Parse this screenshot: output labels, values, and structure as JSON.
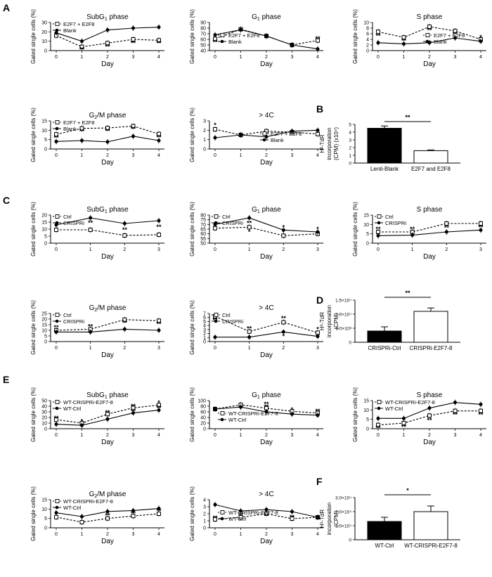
{
  "panel_letters": [
    "A",
    "B",
    "C",
    "D",
    "E",
    "F"
  ],
  "day_label": "Day",
  "ylabel_cells": "Gated single cells (%)",
  "chart_data": [
    {
      "panel": "A",
      "type": "line",
      "title": "SubG1 phase",
      "title_sub": "1",
      "xticks": [
        "0",
        "1",
        "2",
        "3",
        "4"
      ],
      "x": [
        0,
        1,
        2,
        3,
        4
      ],
      "ylim": [
        0,
        30
      ],
      "yticks": [
        "0",
        "10",
        "20",
        "30"
      ],
      "series": [
        {
          "name": "E2F7 + E2F8",
          "style": "open",
          "values": [
            16,
            4,
            8,
            12,
            11
          ]
        },
        {
          "name": "Blank",
          "style": "filled",
          "values": [
            19,
            10,
            22,
            24,
            25
          ]
        }
      ],
      "legend_loc": "top-left",
      "stars": [
        {
          "x": 1,
          "y": 1,
          "t": "**"
        },
        {
          "x": 2,
          "y": 4,
          "t": "**"
        },
        {
          "x": 3,
          "y": 8,
          "t": "**"
        },
        {
          "x": 4,
          "y": 8,
          "t": "**"
        }
      ]
    },
    {
      "panel": "A",
      "type": "line",
      "title": "G1 phase",
      "title_sub": "1",
      "xticks": [
        "0",
        "1",
        "2",
        "3",
        "4"
      ],
      "x": [
        0,
        1,
        2,
        3,
        4
      ],
      "ylim": [
        40,
        90
      ],
      "yticks": [
        "40",
        "50",
        "60",
        "70",
        "80",
        "90"
      ],
      "series": [
        {
          "name": "E2F7 + E2F8",
          "style": "open",
          "values": [
            61,
            78,
            66,
            50,
            58
          ]
        },
        {
          "name": "Blank",
          "style": "filled",
          "values": [
            68,
            77,
            66,
            50,
            43
          ]
        }
      ],
      "legend_loc": "bottom-left",
      "stars": [
        {
          "x": 0,
          "y": 55,
          "t": "**"
        },
        {
          "x": 4,
          "y": 61,
          "t": "**"
        }
      ]
    },
    {
      "panel": "A",
      "type": "line",
      "title": "S phase",
      "xticks": [
        "0",
        "1",
        "2",
        "3",
        "4"
      ],
      "x": [
        0,
        1,
        2,
        3,
        4
      ],
      "ylim": [
        0,
        10
      ],
      "yticks": [
        "0",
        "2",
        "4",
        "6",
        "8",
        "10"
      ],
      "series": [
        {
          "name": "E2F7 + E2F8",
          "style": "open",
          "values": [
            6.7,
            4.7,
            8.5,
            7,
            4
          ]
        },
        {
          "name": "Blank",
          "style": "filled",
          "values": [
            2.8,
            2.4,
            2.8,
            4.5,
            3.3
          ]
        }
      ],
      "legend_loc": "bottom-right",
      "stars": [
        {
          "x": 0,
          "y": 5.3,
          "t": "**"
        },
        {
          "x": 1,
          "y": 3.5,
          "t": "**"
        },
        {
          "x": 2,
          "y": 7.3,
          "t": "**"
        },
        {
          "x": 3,
          "y": 5.9,
          "t": "**"
        },
        {
          "x": 4,
          "y": 4.8,
          "t": "*"
        }
      ]
    },
    {
      "panel": "A",
      "type": "line",
      "title": "G2/M phase",
      "title_sub": "2",
      "xticks": [
        "0",
        "1",
        "2",
        "3",
        "4"
      ],
      "x": [
        0,
        1,
        2,
        3,
        4
      ],
      "ylim": [
        0,
        15
      ],
      "yticks": [
        "0",
        "5",
        "10",
        "15"
      ],
      "series": [
        {
          "name": "E2F7 + E2F8",
          "style": "open",
          "values": [
            7.8,
            11,
            11.2,
            12.2,
            8
          ]
        },
        {
          "name": "Blank",
          "style": "filled",
          "values": [
            4,
            4.5,
            3.8,
            6.8,
            4.5
          ]
        }
      ],
      "legend_loc": "top-left",
      "stars": [
        {
          "x": 0,
          "y": 6,
          "t": "**"
        },
        {
          "x": 1,
          "y": 9.3,
          "t": "**"
        },
        {
          "x": 2,
          "y": 9.5,
          "t": "**"
        },
        {
          "x": 3,
          "y": 10.6,
          "t": "**"
        },
        {
          "x": 4,
          "y": 6.2,
          "t": "**"
        }
      ]
    },
    {
      "panel": "A",
      "type": "line",
      "title": "> 4C",
      "xticks": [
        "0",
        "1",
        "2",
        "3",
        "4"
      ],
      "x": [
        0,
        1,
        2,
        3,
        4
      ],
      "ylim": [
        0,
        3
      ],
      "yticks": [
        "0",
        "1",
        "2",
        "3"
      ],
      "series": [
        {
          "name": "E2F7 + E2F8",
          "style": "open",
          "values": [
            2.1,
            1.5,
            1.9,
            1.8,
            1.6
          ]
        },
        {
          "name": "Blank",
          "style": "filled",
          "values": [
            1.2,
            1.5,
            1.3,
            1.9,
            2
          ]
        }
      ],
      "legend_loc": "bottom-right",
      "stars": [
        {
          "x": 0,
          "y": 2.55,
          "t": "*"
        }
      ]
    },
    {
      "panel": "B",
      "type": "bar",
      "categories": [
        "Lenti-Blank",
        "E2F7 and E2F8"
      ],
      "values": [
        4.5,
        1.6
      ],
      "errors": [
        0.3,
        0.1
      ],
      "fills": [
        "#000000",
        "#ffffff"
      ],
      "ylim": [
        0,
        5
      ],
      "yticks": [
        "0",
        "1",
        "2",
        "3",
        "4",
        "5"
      ],
      "ylabel": [
        "H³-TdR",
        "incorporation",
        "(CPM) (x10⁴)"
      ],
      "sig": "**"
    },
    {
      "panel": "C",
      "type": "line",
      "title": "SubG1 phase",
      "title_sub": "1",
      "xticks": [
        "0",
        "1",
        "2",
        "3"
      ],
      "x": [
        0,
        1,
        2,
        3
      ],
      "ylim": [
        0,
        20
      ],
      "yticks": [
        "0",
        "5",
        "10",
        "15",
        "20"
      ],
      "series": [
        {
          "name": "Ctrl",
          "style": "open",
          "values": [
            9.5,
            9.5,
            5.5,
            6
          ]
        },
        {
          "name": "CRISPRi",
          "style": "filled",
          "values": [
            13,
            18,
            14,
            16
          ]
        }
      ],
      "legend_loc": "top-left",
      "stars": [
        {
          "x": 1,
          "y": 14.5,
          "t": "**"
        },
        {
          "x": 2,
          "y": 9.5,
          "t": "**"
        },
        {
          "x": 3,
          "y": 11.5,
          "t": "**"
        }
      ]
    },
    {
      "panel": "C",
      "type": "line",
      "title": "G1 phase",
      "title_sub": "1",
      "xticks": [
        "0",
        "1",
        "2",
        "3"
      ],
      "x": [
        0,
        1,
        2,
        3
      ],
      "ylim": [
        50,
        80
      ],
      "yticks": [
        "50",
        "55",
        "60",
        "65",
        "70",
        "75",
        "80"
      ],
      "series": [
        {
          "name": "Ctrl",
          "style": "open",
          "values": [
            66,
            67,
            58,
            60
          ]
        },
        {
          "name": "CRISPRi",
          "style": "filled",
          "values": [
            70,
            77,
            64,
            62
          ]
        }
      ],
      "legend_loc": "top-left",
      "stars": [
        {
          "x": 1,
          "y": 71.5,
          "t": "**"
        },
        {
          "x": 1,
          "y": 62,
          "t": "*"
        },
        {
          "x": 2,
          "y": 67,
          "t": "*"
        },
        {
          "x": 3,
          "y": 65,
          "t": "*"
        }
      ]
    },
    {
      "panel": "C",
      "type": "line",
      "title": "S phase",
      "xticks": [
        "0",
        "1",
        "2",
        "3"
      ],
      "x": [
        0,
        1,
        2,
        3
      ],
      "ylim": [
        0,
        15
      ],
      "yticks": [
        "0",
        "5",
        "10",
        "15"
      ],
      "series": [
        {
          "name": "Ctrl",
          "style": "open",
          "values": [
            6,
            6,
            10.5,
            10.5
          ]
        },
        {
          "name": "CRISPRi",
          "style": "filled",
          "values": [
            4,
            4.3,
            6,
            7
          ]
        }
      ],
      "legend_loc": "top-left",
      "stars": [
        {
          "x": 0,
          "y": 7.5,
          "t": "**"
        },
        {
          "x": 1,
          "y": 7.5,
          "t": "**"
        },
        {
          "x": 2,
          "y": 8.3,
          "t": "**"
        },
        {
          "x": 3,
          "y": 8.5,
          "t": "**"
        }
      ]
    },
    {
      "panel": "C",
      "type": "line",
      "title": "G2/M phase",
      "title_sub": "2",
      "xticks": [
        "0",
        "1",
        "2",
        "3"
      ],
      "x": [
        0,
        1,
        2,
        3
      ],
      "ylim": [
        0,
        25
      ],
      "yticks": [
        "0",
        "5",
        "10",
        "15",
        "20",
        "25"
      ],
      "series": [
        {
          "name": "Ctrl",
          "style": "open",
          "values": [
            10,
            11,
            19.5,
            18.5
          ]
        },
        {
          "name": "CRISPRi",
          "style": "filled",
          "values": [
            8.5,
            8.5,
            11,
            10
          ]
        }
      ],
      "legend_loc": "top-left",
      "stars": [
        {
          "x": 0,
          "y": 12.5,
          "t": "**"
        },
        {
          "x": 1,
          "y": 13.5,
          "t": "**"
        },
        {
          "x": 2,
          "y": 16.5,
          "t": "**"
        },
        {
          "x": 3,
          "y": 15.5,
          "t": "**"
        }
      ]
    },
    {
      "panel": "C",
      "type": "line",
      "title": "> 4C",
      "xticks": [
        "0",
        "1",
        "2",
        "3"
      ],
      "x": [
        0,
        1,
        2,
        3
      ],
      "ylim": [
        0,
        7
      ],
      "yticks": [
        "0",
        "1",
        "2",
        "3",
        "4",
        "5",
        "6",
        "7"
      ],
      "series": [
        {
          "name": "Ctrl",
          "style": "open",
          "values": [
            6.3,
            2.5,
            4.8,
            2.2
          ]
        },
        {
          "name": "CRISPRi",
          "style": "filled",
          "values": [
            1.1,
            1.1,
            2.4,
            1.3
          ]
        }
      ],
      "legend_loc": "top-left",
      "stars": [
        {
          "x": 0,
          "y": 5.3,
          "t": "**"
        },
        {
          "x": 1,
          "y": 3.2,
          "t": "**"
        },
        {
          "x": 2,
          "y": 5.8,
          "t": "**"
        },
        {
          "x": 2,
          "y": 1.3,
          "t": "*"
        },
        {
          "x": 3,
          "y": 3.1,
          "t": "*"
        }
      ]
    },
    {
      "panel": "D",
      "type": "bar",
      "categories": [
        "CRISPRi-Ctrl",
        "CRISPRi-E2F7-8"
      ],
      "values": [
        4,
        11
      ],
      "errors": [
        1.5,
        1.2
      ],
      "fills": [
        "#000000",
        "#ffffff"
      ],
      "ylim": [
        0,
        15
      ],
      "yticks": [
        "0",
        "5.0×10³",
        "1.0×10⁴",
        "1.5×10⁴"
      ],
      "ylabel": [
        "H³-TdR",
        "incorporation",
        "(CPM)"
      ],
      "sig": "**"
    },
    {
      "panel": "E",
      "type": "line",
      "title": "SubG1 phase",
      "title_sub": "1",
      "xticks": [
        "0",
        "1",
        "2",
        "3",
        "4"
      ],
      "x": [
        0,
        1,
        2,
        3,
        4
      ],
      "ylim": [
        0,
        50
      ],
      "yticks": [
        "0",
        "10",
        "20",
        "30",
        "40",
        "50"
      ],
      "series": [
        {
          "name": "WT-CRISPRi-E2F7-8",
          "style": "open",
          "values": [
            16,
            10,
            26,
            37,
            42
          ]
        },
        {
          "name": "WT-Ctrl",
          "style": "filled",
          "values": [
            8,
            6,
            17,
            28,
            33
          ]
        }
      ],
      "legend_loc": "top-left",
      "stars": [
        {
          "x": 0,
          "y": 19,
          "t": "**"
        },
        {
          "x": 1,
          "y": 13,
          "t": "*"
        },
        {
          "x": 2,
          "y": 29,
          "t": "**"
        },
        {
          "x": 3,
          "y": 40,
          "t": "**"
        },
        {
          "x": 3,
          "y": 31,
          "t": "**"
        },
        {
          "x": 4,
          "y": 46,
          "t": "*"
        },
        {
          "x": 4,
          "y": 37,
          "t": "**"
        }
      ]
    },
    {
      "panel": "E",
      "type": "line",
      "title": "G1 phase",
      "title_sub": "1",
      "xticks": [
        "0",
        "1",
        "2",
        "3",
        "4"
      ],
      "x": [
        0,
        1,
        2,
        3,
        4
      ],
      "ylim": [
        0,
        100
      ],
      "yticks": [
        "0",
        "20",
        "40",
        "60",
        "80",
        "100"
      ],
      "series": [
        {
          "name": "WT-CRISPRi-E2F7-8",
          "style": "open",
          "values": [
            70,
            85,
            73,
            62,
            56
          ]
        },
        {
          "name": "WT-Ctrl",
          "style": "filled",
          "values": [
            70,
            77,
            60,
            52,
            48
          ]
        }
      ],
      "legend_loc": "bottom-left",
      "stars": [
        {
          "x": 2,
          "y": 88,
          "t": "**"
        },
        {
          "x": 2,
          "y": 78,
          "t": "**"
        },
        {
          "x": 3,
          "y": 67,
          "t": "*"
        },
        {
          "x": 4,
          "y": 62,
          "t": "**"
        }
      ]
    },
    {
      "panel": "E",
      "type": "line",
      "title": "S phase",
      "xticks": [
        "0",
        "1",
        "2",
        "3",
        "4"
      ],
      "x": [
        0,
        1,
        2,
        3,
        4
      ],
      "ylim": [
        0,
        15
      ],
      "yticks": [
        "0",
        "5",
        "10",
        "15"
      ],
      "series": [
        {
          "name": "WT-CRISPRi-E2F7-8",
          "style": "open",
          "values": [
            2,
            3,
            7,
            9.5,
            9.5
          ]
        },
        {
          "name": "WT-Ctrl",
          "style": "filled",
          "values": [
            5.5,
            5.5,
            11,
            14,
            13
          ]
        }
      ],
      "legend_loc": "top-left",
      "stars": [
        {
          "x": 0,
          "y": 0.3,
          "t": "**"
        },
        {
          "x": 1,
          "y": 1,
          "t": "**"
        },
        {
          "x": 2,
          "y": 4.5,
          "t": "**"
        },
        {
          "x": 3,
          "y": 7.5,
          "t": "**"
        },
        {
          "x": 4,
          "y": 7.5,
          "t": "**"
        }
      ]
    },
    {
      "panel": "E",
      "type": "line",
      "title": "G2/M phase",
      "title_sub": "2",
      "xticks": [
        "0",
        "1",
        "2",
        "3",
        "4"
      ],
      "x": [
        0,
        1,
        2,
        3,
        4
      ],
      "ylim": [
        0,
        15
      ],
      "yticks": [
        "0",
        "5",
        "10",
        "15"
      ],
      "series": [
        {
          "name": "WT-CRISPRi-E2F7-8",
          "style": "open",
          "values": [
            5.7,
            3,
            5,
            6.3,
            7.5
          ]
        },
        {
          "name": "WT-Ctrl",
          "style": "filled",
          "values": [
            8,
            6,
            8.7,
            9.2,
            10.3
          ]
        }
      ],
      "legend_loc": "top-left",
      "stars": [
        {
          "x": 1,
          "y": 5,
          "t": "*"
        },
        {
          "x": 2,
          "y": 6.5,
          "t": "**"
        },
        {
          "x": 3,
          "y": 7.7,
          "t": "**"
        },
        {
          "x": 4,
          "y": 9,
          "t": "**"
        }
      ]
    },
    {
      "panel": "E",
      "type": "line",
      "title": "> 4C",
      "xticks": [
        "0",
        "1",
        "2",
        "3",
        "4"
      ],
      "x": [
        0,
        1,
        2,
        3,
        4
      ],
      "ylim": [
        0,
        4
      ],
      "yticks": [
        "0",
        "1",
        "2",
        "3",
        "4"
      ],
      "series": [
        {
          "name": "WT-CRISPRi-E2F7-8",
          "style": "open",
          "values": [
            1.2,
            1.5,
            2,
            1.3,
            1.5
          ]
        },
        {
          "name": "WT-Ctrl",
          "style": "filled",
          "values": [
            3.3,
            2.4,
            2.6,
            2.3,
            1.5
          ]
        }
      ],
      "legend_loc": "bottom-left",
      "stars": [
        {
          "x": 0,
          "y": 1.4,
          "t": "**"
        },
        {
          "x": 1,
          "y": 1.8,
          "t": "**"
        },
        {
          "x": 2,
          "y": 1.7,
          "t": "**"
        },
        {
          "x": 3,
          "y": 1.5,
          "t": "**"
        }
      ]
    },
    {
      "panel": "F",
      "type": "bar",
      "categories": [
        "WT-Ctrl",
        "WT-CRISPRi-E2F7-8"
      ],
      "values": [
        1.3,
        2
      ],
      "errors": [
        0.3,
        0.4
      ],
      "fills": [
        "#000000",
        "#ffffff"
      ],
      "ylim": [
        0,
        3
      ],
      "yticks": [
        "0",
        "1.0×10⁴",
        "2.0×10⁴",
        "3.0×10⁴"
      ],
      "ylabel": [
        "H³-TdR",
        "incorporation",
        "(CPM)"
      ],
      "sig": "*"
    }
  ]
}
